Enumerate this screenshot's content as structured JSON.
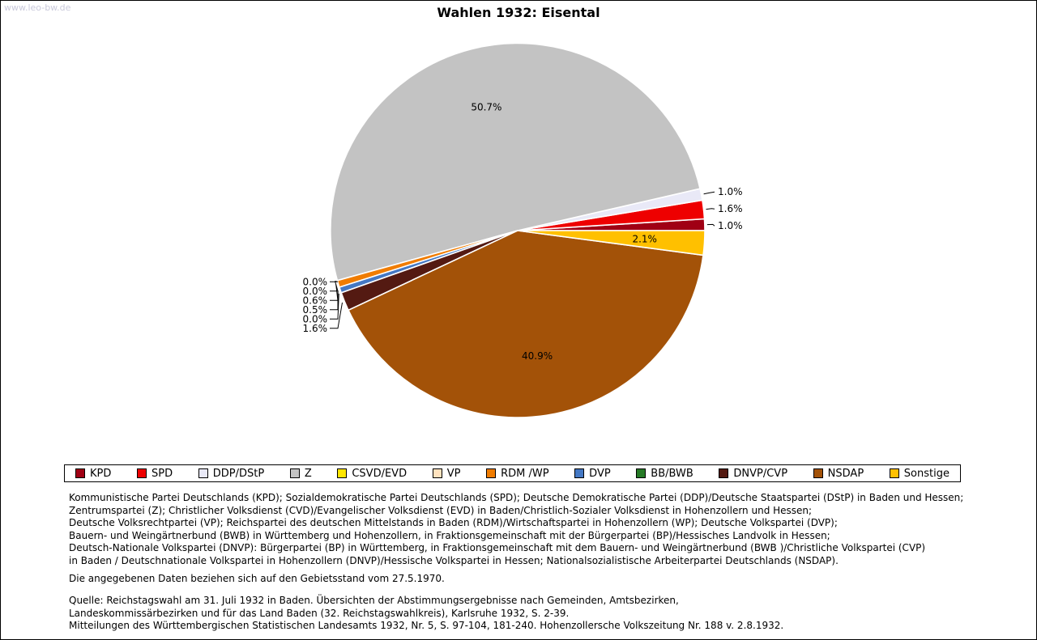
{
  "page": {
    "watermark": "www.leo-bw.de",
    "title": "Wahlen 1932: Eisental"
  },
  "chart_data": {
    "type": "pie",
    "title": "Wahlen 1932: Eisental",
    "unit": "percent",
    "start_angle_deg": 0,
    "direction": "counterclockwise",
    "legend_position": "bottom",
    "slices": [
      {
        "label": "KPD",
        "value": 1.0,
        "color": "#A00014"
      },
      {
        "label": "SPD",
        "value": 1.6,
        "color": "#EE0000"
      },
      {
        "label": "DDP/DStP",
        "value": 1.0,
        "color": "#E9E9F7"
      },
      {
        "label": "Z",
        "value": 50.7,
        "color": "#C3C3C3"
      },
      {
        "label": "CSVD/EVD",
        "value": 0.0,
        "color": "#FFE600"
      },
      {
        "label": "VP",
        "value": 0.0,
        "color": "#FFE2BE"
      },
      {
        "label": "RDM /WP",
        "value": 0.6,
        "color": "#F07C00"
      },
      {
        "label": "DVP",
        "value": 0.5,
        "color": "#4478C4"
      },
      {
        "label": "BB/BWB",
        "value": 0.0,
        "color": "#267A26"
      },
      {
        "label": "DNVP/CVP",
        "value": 1.6,
        "color": "#541A12"
      },
      {
        "label": "NSDAP",
        "value": 40.9,
        "color": "#A35208"
      },
      {
        "label": "Sonstige",
        "value": 2.1,
        "color": "#FFC000"
      }
    ]
  },
  "notes": {
    "party_lines": [
      "Kommunistische Partei Deutschlands (KPD); Sozialdemokratische Partei Deutschlands (SPD); Deutsche Demokratische Partei (DDP)/Deutsche Staatspartei (DStP) in Baden und Hessen;",
      "Zentrumspartei (Z); Christlicher Volksdienst (CVD)/Evangelischer Volksdienst (EVD) in Baden/Christlich-Sozialer Volksdienst in Hohenzollern und Hessen;",
      "Deutsche Volksrechtpartei (VP); Reichspartei des deutschen Mittelstands in Baden (RDM)/Wirtschaftspartei in Hohenzollern (WP); Deutsche Volkspartei (DVP);",
      "Bauern- und Weingärtnerbund (BWB) in Württemberg und Hohenzollern, in Fraktionsgemeinschaft mit der Bürgerpartei (BP)/Hessisches Landvolk in Hessen;",
      "Deutsch-Nationale Volkspartei (DNVP): Bürgerpartei (BP) in Württemberg, in Fraktionsgemeinschaft mit dem Bauern- und Weingärtnerbund (BWB )/Christliche Volkspartei (CVP)",
      "in Baden / Deutschnationale Volkspartei in Hohenzollern (DNVP)/Hessische Volkspartei in Hessen; Nationalsozialistische Arbeiterpartei Deutschlands (NSDAP)."
    ],
    "basis": "Die angegebenen Daten beziehen sich auf den Gebietsstand vom 27.5.1970.",
    "source_lines": [
      "Quelle: Reichstagswahl am 31. Juli 1932 in Baden. Übersichten der Abstimmungsergebnisse nach Gemeinden, Amtsbezirken,",
      "Landeskommissärbezirken und für das Land Baden (32. Reichstagswahlkreis), Karlsruhe 1932, S. 2-39.",
      "Mitteilungen des Württembergischen Statistischen Landesamts 1932, Nr. 5, S. 97-104, 181-240. Hohenzollersche Volkszeitung Nr. 188 v. 2.8.1932."
    ]
  }
}
